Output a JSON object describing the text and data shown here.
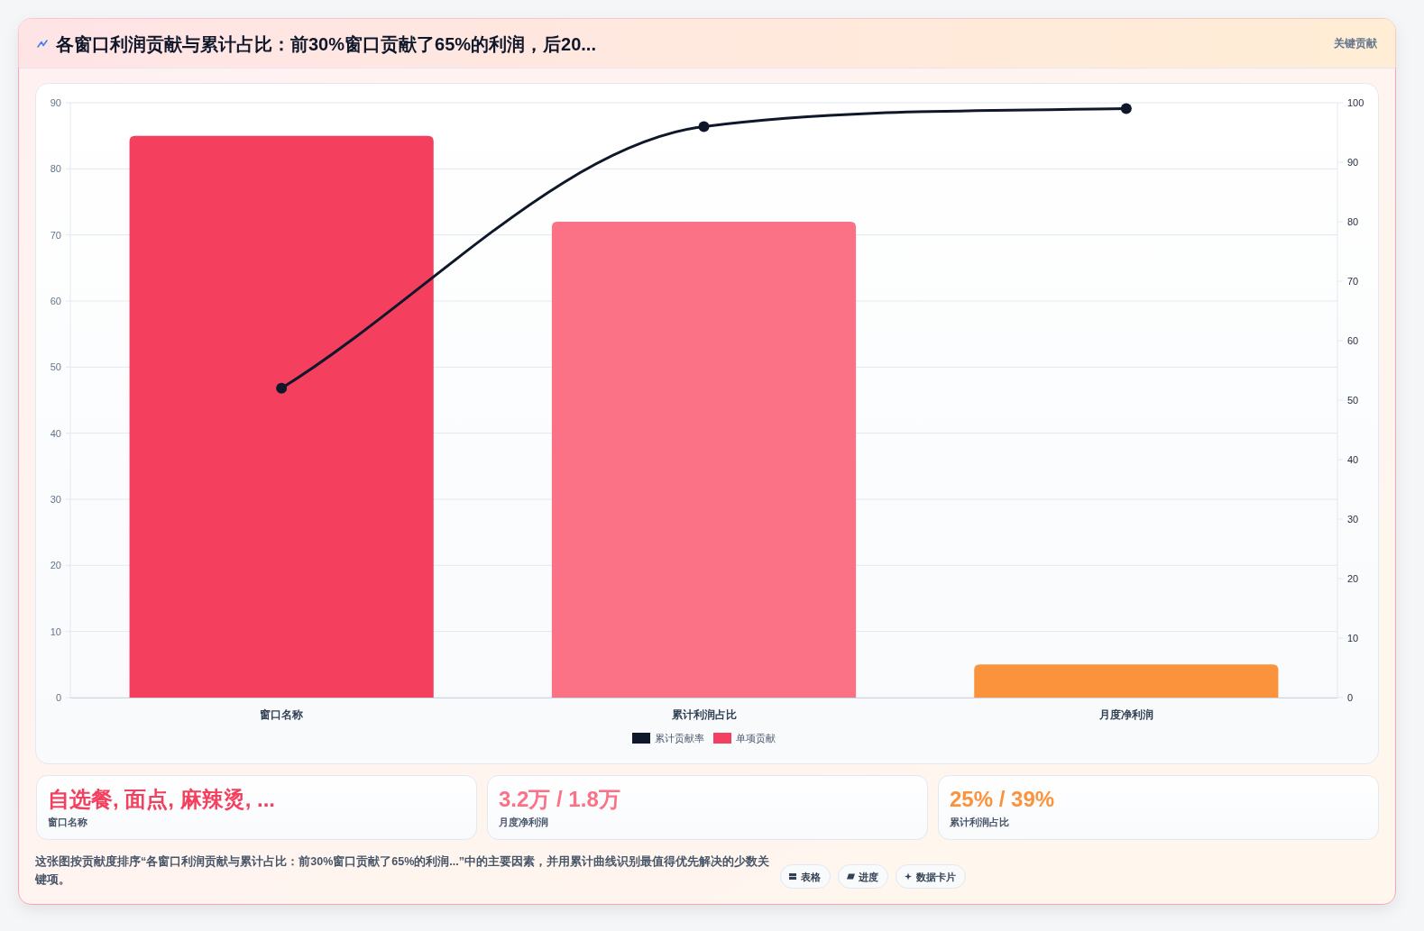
{
  "chart_data": [
    {
      "type": "bar",
      "title": "各窗口利润贡献与累计占比：前30%窗口贡献了65%的利润，后20...",
      "categories": [
        "窗口名称",
        "累计利润占比",
        "月度净利润"
      ],
      "series": [
        {
          "name": "累计贡献率",
          "type": "line",
          "axis": "y2",
          "color": "#0f172a",
          "marker": "circle",
          "values": [
            52,
            96,
            99
          ]
        },
        {
          "name": "单项贡献",
          "type": "bar",
          "colors": [
            "#f43f5e",
            "#fb7185",
            "#fb923c"
          ],
          "values": [
            85,
            72,
            5
          ]
        }
      ],
      "ylim": [
        0,
        90
      ],
      "yticks": [
        0,
        10,
        20,
        30,
        40,
        50,
        60,
        70,
        80,
        90
      ],
      "y2lim": [
        0,
        100
      ],
      "y2ticks": [
        0,
        10,
        20,
        30,
        40,
        50,
        60,
        70,
        80,
        90,
        100
      ],
      "grid": "y",
      "legend": "bottom",
      "annotations": [
        "关键贡献",
        "这张图按贡献度排序“各窗口利润贡献与累计占比：前30%窗口贡献了65%的利润...”中的主要因素，并用累计曲线识别最值得优先解决的少数关键项。",
        "表格",
        "进度",
        "数据卡片"
      ]
    },
    {
      "type": "other",
      "title": "自选餐, 面点, 麻辣烫, ...",
      "subtitle": "窗口名称"
    },
    {
      "type": "other",
      "title": "3.2万 / 1.8万",
      "subtitle": "月度净利润"
    },
    {
      "type": "other",
      "title": "25% / 39%",
      "subtitle": "累计利润占比"
    }
  ]
}
